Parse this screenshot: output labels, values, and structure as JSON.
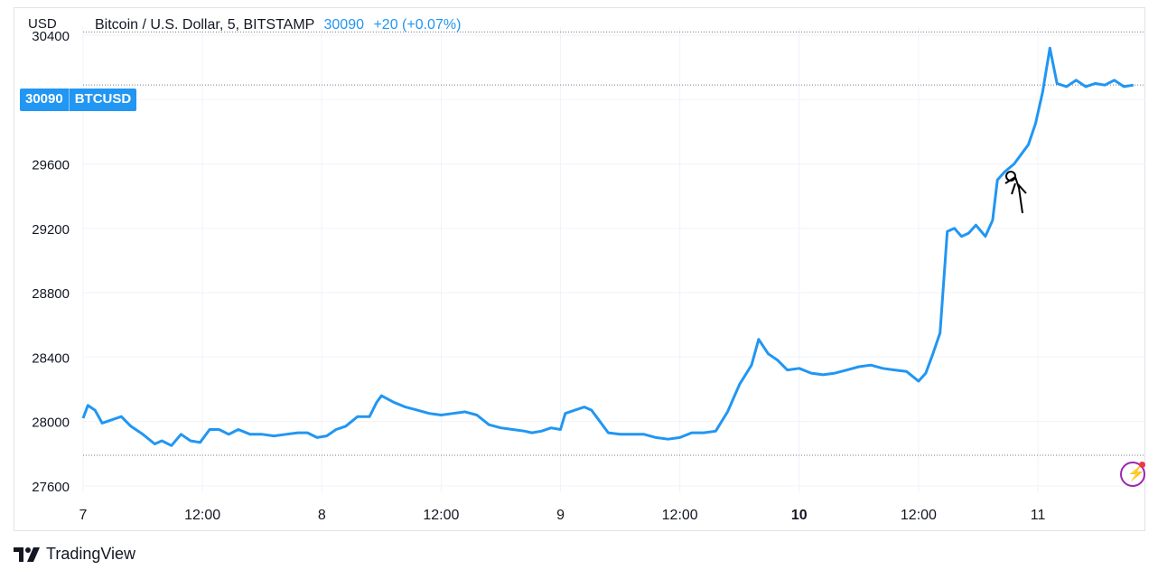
{
  "legend": {
    "symbol_text": "Bitcoin / U.S. Dollar, 5, BITSTAMP",
    "price": "30090",
    "change": "+20 (+0.07%)"
  },
  "axis": {
    "currency": "USD"
  },
  "price_tag": {
    "price": "30090",
    "symbol": "BTCUSD"
  },
  "brand": {
    "name": "TradingView",
    "logo_icon": "tradingview-logo-icon"
  },
  "colors": {
    "line": "#2196f3",
    "grid": "#f0f3fa",
    "flash": "#9c27b0"
  },
  "chart_data": {
    "type": "line",
    "title": "Bitcoin / U.S. Dollar, 5, BITSTAMP",
    "ylabel": "USD",
    "ylim": [
      27560,
      30450
    ],
    "y_ticks": [
      27600,
      28000,
      28400,
      28800,
      29200,
      29600,
      30000,
      30400
    ],
    "x_ticks": [
      {
        "label": "7",
        "day": 7.0
      },
      {
        "label": "12:00",
        "day": 7.5
      },
      {
        "label": "8",
        "day": 8.0
      },
      {
        "label": "12:00",
        "day": 8.5
      },
      {
        "label": "9",
        "day": 9.0
      },
      {
        "label": "12:00",
        "day": 9.5
      },
      {
        "label": "10",
        "day": 10.0,
        "bold": true
      },
      {
        "label": "12:00",
        "day": 10.5
      },
      {
        "label": "11",
        "day": 11.0
      }
    ],
    "xlim": [
      7.0,
      11.45
    ],
    "reference_lines": [
      30420,
      30090,
      27790
    ],
    "series": [
      {
        "values": [
          [
            7.0,
            28020
          ],
          [
            7.02,
            28100
          ],
          [
            7.05,
            28070
          ],
          [
            7.08,
            27990
          ],
          [
            7.12,
            28010
          ],
          [
            7.16,
            28030
          ],
          [
            7.2,
            27970
          ],
          [
            7.25,
            27920
          ],
          [
            7.3,
            27860
          ],
          [
            7.33,
            27880
          ],
          [
            7.37,
            27850
          ],
          [
            7.41,
            27920
          ],
          [
            7.45,
            27880
          ],
          [
            7.49,
            27870
          ],
          [
            7.53,
            27950
          ],
          [
            7.57,
            27950
          ],
          [
            7.61,
            27920
          ],
          [
            7.65,
            27950
          ],
          [
            7.7,
            27920
          ],
          [
            7.75,
            27920
          ],
          [
            7.8,
            27910
          ],
          [
            7.85,
            27920
          ],
          [
            7.9,
            27930
          ],
          [
            7.94,
            27930
          ],
          [
            7.98,
            27900
          ],
          [
            8.02,
            27910
          ],
          [
            8.06,
            27950
          ],
          [
            8.1,
            27970
          ],
          [
            8.15,
            28030
          ],
          [
            8.2,
            28030
          ],
          [
            8.23,
            28120
          ],
          [
            8.25,
            28160
          ],
          [
            8.3,
            28120
          ],
          [
            8.35,
            28090
          ],
          [
            8.4,
            28070
          ],
          [
            8.45,
            28050
          ],
          [
            8.5,
            28040
          ],
          [
            8.55,
            28050
          ],
          [
            8.6,
            28060
          ],
          [
            8.65,
            28040
          ],
          [
            8.7,
            27980
          ],
          [
            8.75,
            27960
          ],
          [
            8.8,
            27950
          ],
          [
            8.85,
            27940
          ],
          [
            8.88,
            27930
          ],
          [
            8.92,
            27940
          ],
          [
            8.96,
            27960
          ],
          [
            9.0,
            27950
          ],
          [
            9.02,
            28050
          ],
          [
            9.06,
            28070
          ],
          [
            9.1,
            28090
          ],
          [
            9.13,
            28070
          ],
          [
            9.16,
            28010
          ],
          [
            9.2,
            27930
          ],
          [
            9.25,
            27920
          ],
          [
            9.3,
            27920
          ],
          [
            9.35,
            27920
          ],
          [
            9.4,
            27900
          ],
          [
            9.45,
            27890
          ],
          [
            9.5,
            27900
          ],
          [
            9.55,
            27930
          ],
          [
            9.6,
            27930
          ],
          [
            9.65,
            27940
          ],
          [
            9.7,
            28060
          ],
          [
            9.75,
            28230
          ],
          [
            9.8,
            28350
          ],
          [
            9.83,
            28510
          ],
          [
            9.87,
            28420
          ],
          [
            9.91,
            28380
          ],
          [
            9.95,
            28320
          ],
          [
            10.0,
            28330
          ],
          [
            10.05,
            28300
          ],
          [
            10.1,
            28290
          ],
          [
            10.15,
            28300
          ],
          [
            10.2,
            28320
          ],
          [
            10.25,
            28340
          ],
          [
            10.3,
            28350
          ],
          [
            10.35,
            28330
          ],
          [
            10.4,
            28320
          ],
          [
            10.45,
            28310
          ],
          [
            10.5,
            28250
          ],
          [
            10.53,
            28300
          ],
          [
            10.56,
            28420
          ],
          [
            10.59,
            28550
          ],
          [
            10.62,
            29180
          ],
          [
            10.65,
            29200
          ],
          [
            10.68,
            29150
          ],
          [
            10.71,
            29170
          ],
          [
            10.74,
            29220
          ],
          [
            10.78,
            29150
          ],
          [
            10.81,
            29250
          ],
          [
            10.83,
            29500
          ],
          [
            10.86,
            29550
          ],
          [
            10.9,
            29600
          ],
          [
            10.93,
            29660
          ],
          [
            10.96,
            29720
          ],
          [
            10.99,
            29850
          ],
          [
            11.02,
            30050
          ],
          [
            11.05,
            30320
          ],
          [
            11.08,
            30100
          ],
          [
            11.12,
            30080
          ],
          [
            11.16,
            30120
          ],
          [
            11.2,
            30080
          ],
          [
            11.24,
            30100
          ],
          [
            11.28,
            30090
          ],
          [
            11.32,
            30120
          ],
          [
            11.36,
            30080
          ],
          [
            11.4,
            30090
          ]
        ]
      }
    ]
  }
}
